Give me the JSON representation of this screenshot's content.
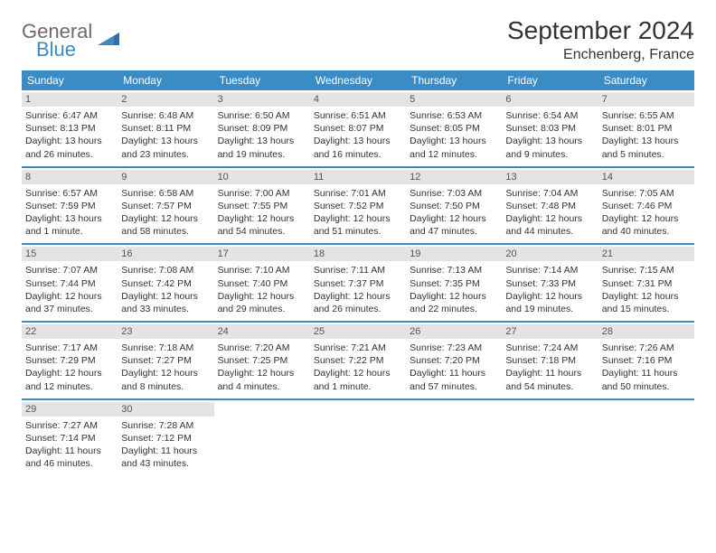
{
  "brand": {
    "line1": "General",
    "line2": "Blue"
  },
  "title": "September 2024",
  "location": "Enchenberg, France",
  "colors": {
    "header_bg": "#3b8bc4",
    "daynum_bg": "#e4e4e4",
    "text": "#333333",
    "logo_gray": "#6b6b6b",
    "logo_blue": "#3b8bc4"
  },
  "weekdays": [
    "Sunday",
    "Monday",
    "Tuesday",
    "Wednesday",
    "Thursday",
    "Friday",
    "Saturday"
  ],
  "weeks": [
    [
      {
        "n": "1",
        "sr": "Sunrise: 6:47 AM",
        "ss": "Sunset: 8:13 PM",
        "d1": "Daylight: 13 hours",
        "d2": "and 26 minutes."
      },
      {
        "n": "2",
        "sr": "Sunrise: 6:48 AM",
        "ss": "Sunset: 8:11 PM",
        "d1": "Daylight: 13 hours",
        "d2": "and 23 minutes."
      },
      {
        "n": "3",
        "sr": "Sunrise: 6:50 AM",
        "ss": "Sunset: 8:09 PM",
        "d1": "Daylight: 13 hours",
        "d2": "and 19 minutes."
      },
      {
        "n": "4",
        "sr": "Sunrise: 6:51 AM",
        "ss": "Sunset: 8:07 PM",
        "d1": "Daylight: 13 hours",
        "d2": "and 16 minutes."
      },
      {
        "n": "5",
        "sr": "Sunrise: 6:53 AM",
        "ss": "Sunset: 8:05 PM",
        "d1": "Daylight: 13 hours",
        "d2": "and 12 minutes."
      },
      {
        "n": "6",
        "sr": "Sunrise: 6:54 AM",
        "ss": "Sunset: 8:03 PM",
        "d1": "Daylight: 13 hours",
        "d2": "and 9 minutes."
      },
      {
        "n": "7",
        "sr": "Sunrise: 6:55 AM",
        "ss": "Sunset: 8:01 PM",
        "d1": "Daylight: 13 hours",
        "d2": "and 5 minutes."
      }
    ],
    [
      {
        "n": "8",
        "sr": "Sunrise: 6:57 AM",
        "ss": "Sunset: 7:59 PM",
        "d1": "Daylight: 13 hours",
        "d2": "and 1 minute."
      },
      {
        "n": "9",
        "sr": "Sunrise: 6:58 AM",
        "ss": "Sunset: 7:57 PM",
        "d1": "Daylight: 12 hours",
        "d2": "and 58 minutes."
      },
      {
        "n": "10",
        "sr": "Sunrise: 7:00 AM",
        "ss": "Sunset: 7:55 PM",
        "d1": "Daylight: 12 hours",
        "d2": "and 54 minutes."
      },
      {
        "n": "11",
        "sr": "Sunrise: 7:01 AM",
        "ss": "Sunset: 7:52 PM",
        "d1": "Daylight: 12 hours",
        "d2": "and 51 minutes."
      },
      {
        "n": "12",
        "sr": "Sunrise: 7:03 AM",
        "ss": "Sunset: 7:50 PM",
        "d1": "Daylight: 12 hours",
        "d2": "and 47 minutes."
      },
      {
        "n": "13",
        "sr": "Sunrise: 7:04 AM",
        "ss": "Sunset: 7:48 PM",
        "d1": "Daylight: 12 hours",
        "d2": "and 44 minutes."
      },
      {
        "n": "14",
        "sr": "Sunrise: 7:05 AM",
        "ss": "Sunset: 7:46 PM",
        "d1": "Daylight: 12 hours",
        "d2": "and 40 minutes."
      }
    ],
    [
      {
        "n": "15",
        "sr": "Sunrise: 7:07 AM",
        "ss": "Sunset: 7:44 PM",
        "d1": "Daylight: 12 hours",
        "d2": "and 37 minutes."
      },
      {
        "n": "16",
        "sr": "Sunrise: 7:08 AM",
        "ss": "Sunset: 7:42 PM",
        "d1": "Daylight: 12 hours",
        "d2": "and 33 minutes."
      },
      {
        "n": "17",
        "sr": "Sunrise: 7:10 AM",
        "ss": "Sunset: 7:40 PM",
        "d1": "Daylight: 12 hours",
        "d2": "and 29 minutes."
      },
      {
        "n": "18",
        "sr": "Sunrise: 7:11 AM",
        "ss": "Sunset: 7:37 PM",
        "d1": "Daylight: 12 hours",
        "d2": "and 26 minutes."
      },
      {
        "n": "19",
        "sr": "Sunrise: 7:13 AM",
        "ss": "Sunset: 7:35 PM",
        "d1": "Daylight: 12 hours",
        "d2": "and 22 minutes."
      },
      {
        "n": "20",
        "sr": "Sunrise: 7:14 AM",
        "ss": "Sunset: 7:33 PM",
        "d1": "Daylight: 12 hours",
        "d2": "and 19 minutes."
      },
      {
        "n": "21",
        "sr": "Sunrise: 7:15 AM",
        "ss": "Sunset: 7:31 PM",
        "d1": "Daylight: 12 hours",
        "d2": "and 15 minutes."
      }
    ],
    [
      {
        "n": "22",
        "sr": "Sunrise: 7:17 AM",
        "ss": "Sunset: 7:29 PM",
        "d1": "Daylight: 12 hours",
        "d2": "and 12 minutes."
      },
      {
        "n": "23",
        "sr": "Sunrise: 7:18 AM",
        "ss": "Sunset: 7:27 PM",
        "d1": "Daylight: 12 hours",
        "d2": "and 8 minutes."
      },
      {
        "n": "24",
        "sr": "Sunrise: 7:20 AM",
        "ss": "Sunset: 7:25 PM",
        "d1": "Daylight: 12 hours",
        "d2": "and 4 minutes."
      },
      {
        "n": "25",
        "sr": "Sunrise: 7:21 AM",
        "ss": "Sunset: 7:22 PM",
        "d1": "Daylight: 12 hours",
        "d2": "and 1 minute."
      },
      {
        "n": "26",
        "sr": "Sunrise: 7:23 AM",
        "ss": "Sunset: 7:20 PM",
        "d1": "Daylight: 11 hours",
        "d2": "and 57 minutes."
      },
      {
        "n": "27",
        "sr": "Sunrise: 7:24 AM",
        "ss": "Sunset: 7:18 PM",
        "d1": "Daylight: 11 hours",
        "d2": "and 54 minutes."
      },
      {
        "n": "28",
        "sr": "Sunrise: 7:26 AM",
        "ss": "Sunset: 7:16 PM",
        "d1": "Daylight: 11 hours",
        "d2": "and 50 minutes."
      }
    ],
    [
      {
        "n": "29",
        "sr": "Sunrise: 7:27 AM",
        "ss": "Sunset: 7:14 PM",
        "d1": "Daylight: 11 hours",
        "d2": "and 46 minutes."
      },
      {
        "n": "30",
        "sr": "Sunrise: 7:28 AM",
        "ss": "Sunset: 7:12 PM",
        "d1": "Daylight: 11 hours",
        "d2": "and 43 minutes."
      },
      {
        "empty": true
      },
      {
        "empty": true
      },
      {
        "empty": true
      },
      {
        "empty": true
      },
      {
        "empty": true
      }
    ]
  ]
}
